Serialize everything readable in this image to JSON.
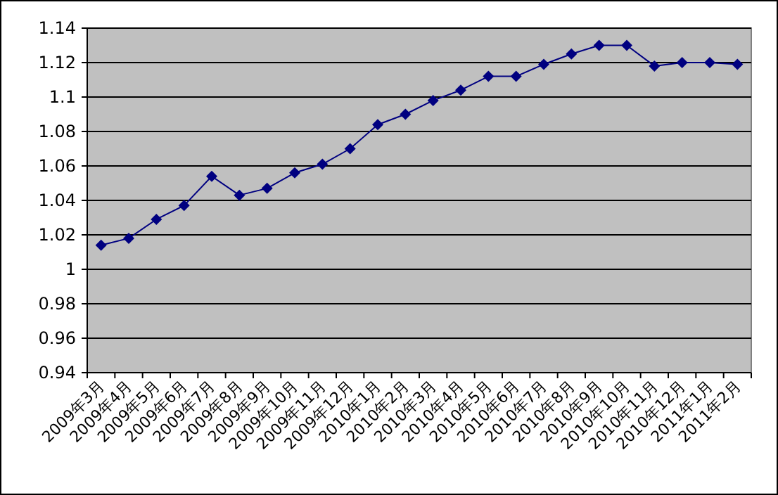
{
  "chart_data": {
    "type": "line",
    "categories": [
      "2009年3月",
      "2009年4月",
      "2009年5月",
      "2009年6月",
      "2009年7月",
      "2009年8月",
      "2009年9月",
      "2009年10月",
      "2009年11月",
      "2009年12月",
      "2010年1月",
      "2010年2月",
      "2010年3月",
      "2010年4月",
      "2010年5月",
      "2010年6月",
      "2010年7月",
      "2010年8月",
      "2010年9月",
      "2010年10月",
      "2010年11月",
      "2010年12月",
      "2011年1月",
      "2011年2月"
    ],
    "series": [
      {
        "color": "#000080",
        "values": [
          1.014,
          1.018,
          1.029,
          1.037,
          1.054,
          1.043,
          1.047,
          1.056,
          1.061,
          1.07,
          1.084,
          1.09,
          1.098,
          1.104,
          1.112,
          1.112,
          1.119,
          1.125,
          1.13,
          1.13,
          1.118,
          1.12,
          1.12,
          1.119
        ]
      }
    ],
    "ylim": [
      0.94,
      1.14
    ],
    "yticks": [
      0.94,
      0.96,
      0.98,
      1,
      1.02,
      1.04,
      1.06,
      1.08,
      1.1,
      1.12,
      1.14
    ],
    "grid": "y",
    "marker": "diamond",
    "line_style": "solid"
  }
}
